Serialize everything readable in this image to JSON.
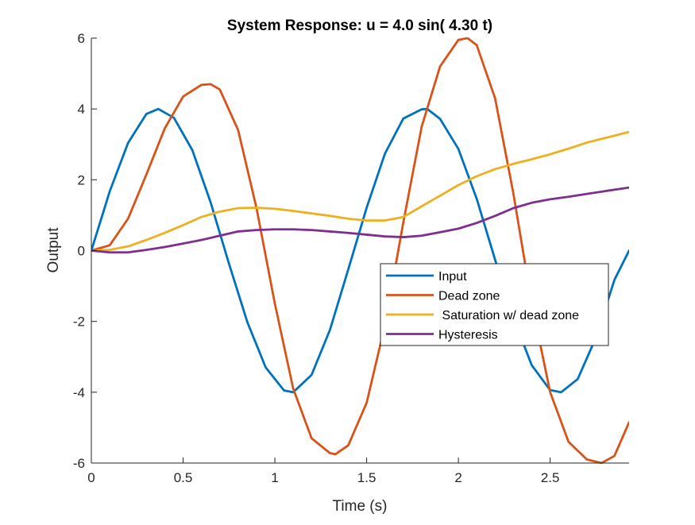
{
  "chart_data": {
    "type": "line",
    "title": "System Response: u = 4.0 sin( 4.30 t)",
    "xlabel": "Time (s)",
    "ylabel": "Output",
    "xlim": [
      0,
      2.93
    ],
    "ylim": [
      -6,
      6
    ],
    "xticks": [
      0,
      0.5,
      1,
      1.5,
      2,
      2.5
    ],
    "xtick_labels": [
      "0",
      "0.5",
      "1",
      "1.5",
      "2",
      "2.5"
    ],
    "yticks": [
      -6,
      -4,
      -2,
      0,
      2,
      4,
      6
    ],
    "ytick_labels": [
      "-6",
      "-4",
      "-2",
      "0",
      "2",
      "4",
      "6"
    ],
    "grid": false,
    "legend_position": "center-right",
    "series": [
      {
        "name": "Input",
        "color": "#0072BD",
        "x": [
          0,
          0.1,
          0.2,
          0.3,
          0.365,
          0.45,
          0.55,
          0.65,
          0.75,
          0.85,
          0.95,
          1.05,
          1.1,
          1.2,
          1.3,
          1.4,
          1.5,
          1.6,
          1.7,
          1.8,
          1.83,
          1.9,
          2.0,
          2.1,
          2.2,
          2.3,
          2.4,
          2.5,
          2.56,
          2.65,
          2.75,
          2.85,
          2.93
        ],
        "y": [
          0,
          1.67,
          3.04,
          3.86,
          4.0,
          3.75,
          2.84,
          1.36,
          -0.37,
          -2.02,
          -3.3,
          -3.95,
          -4.0,
          -3.51,
          -2.24,
          -0.53,
          1.21,
          2.74,
          3.73,
          3.99,
          4.0,
          3.72,
          2.87,
          1.46,
          -0.26,
          -1.91,
          -3.24,
          -3.94,
          -4.0,
          -3.63,
          -2.45,
          -0.83,
          0.0
        ]
      },
      {
        "name": "Dead zone",
        "color": "#D95319",
        "x": [
          0,
          0.1,
          0.2,
          0.3,
          0.4,
          0.5,
          0.6,
          0.65,
          0.7,
          0.8,
          0.9,
          1.0,
          1.1,
          1.2,
          1.3,
          1.33,
          1.4,
          1.5,
          1.6,
          1.7,
          1.8,
          1.9,
          2.0,
          2.05,
          2.1,
          2.2,
          2.3,
          2.4,
          2.5,
          2.6,
          2.7,
          2.78,
          2.85,
          2.93
        ],
        "y": [
          0,
          0.15,
          0.9,
          2.15,
          3.45,
          4.35,
          4.68,
          4.7,
          4.55,
          3.4,
          1.2,
          -1.5,
          -3.9,
          -5.3,
          -5.72,
          -5.75,
          -5.5,
          -4.3,
          -2.1,
          0.8,
          3.5,
          5.2,
          5.95,
          6.0,
          5.8,
          4.3,
          1.6,
          -1.5,
          -4.0,
          -5.4,
          -5.9,
          -6.0,
          -5.8,
          -4.85
        ]
      },
      {
        "name": " Saturation w/ dead zone",
        "color": "#EDB120",
        "x": [
          0,
          0.1,
          0.2,
          0.3,
          0.4,
          0.5,
          0.6,
          0.7,
          0.8,
          0.9,
          1.0,
          1.1,
          1.2,
          1.3,
          1.4,
          1.5,
          1.6,
          1.7,
          1.8,
          1.9,
          2.0,
          2.1,
          2.2,
          2.3,
          2.4,
          2.5,
          2.6,
          2.7,
          2.8,
          2.93
        ],
        "y": [
          0,
          0.02,
          0.12,
          0.3,
          0.5,
          0.72,
          0.95,
          1.1,
          1.2,
          1.21,
          1.18,
          1.12,
          1.05,
          0.98,
          0.9,
          0.85,
          0.85,
          0.95,
          1.25,
          1.55,
          1.85,
          2.1,
          2.3,
          2.45,
          2.58,
          2.72,
          2.88,
          3.05,
          3.18,
          3.35
        ]
      },
      {
        "name": "Hysteresis",
        "color": "#7E2F8E",
        "x": [
          0,
          0.1,
          0.2,
          0.3,
          0.4,
          0.5,
          0.6,
          0.7,
          0.8,
          0.9,
          1.0,
          1.1,
          1.2,
          1.3,
          1.4,
          1.5,
          1.6,
          1.7,
          1.8,
          1.9,
          2.0,
          2.1,
          2.2,
          2.3,
          2.4,
          2.5,
          2.6,
          2.7,
          2.8,
          2.93
        ],
        "y": [
          0,
          -0.05,
          -0.05,
          0.02,
          0.1,
          0.2,
          0.3,
          0.42,
          0.54,
          0.58,
          0.6,
          0.6,
          0.58,
          0.54,
          0.5,
          0.45,
          0.4,
          0.38,
          0.42,
          0.52,
          0.62,
          0.78,
          0.98,
          1.2,
          1.35,
          1.45,
          1.52,
          1.6,
          1.68,
          1.78
        ]
      }
    ]
  }
}
